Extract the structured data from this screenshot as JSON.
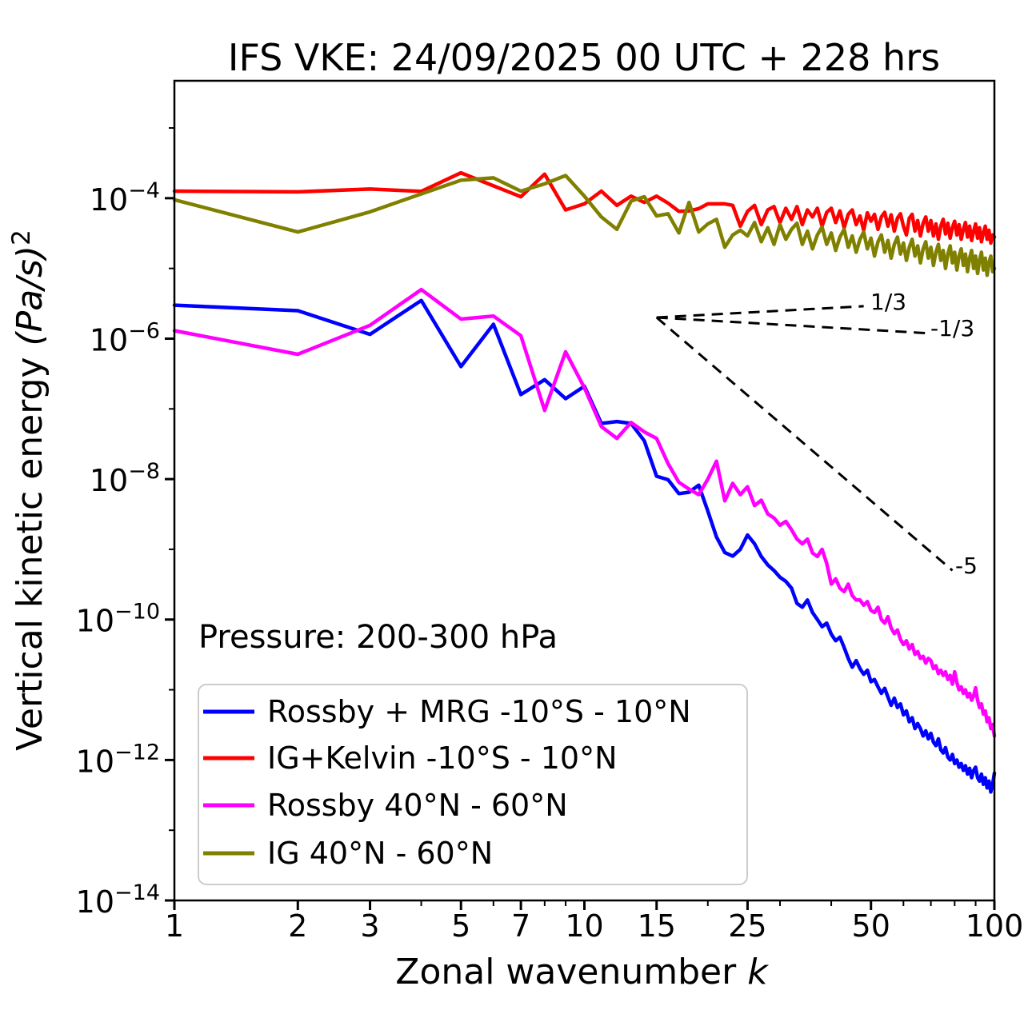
{
  "title": "IFS VKE: 24/09/2025 00 UTC + 228 hrs",
  "annotation": "Pressure: 200-300 hPa",
  "axes": {
    "xlabel_prefix": "Zonal wavenumber ",
    "xlabel_var": "k",
    "ylabel_prefix": "Vertical kinetic energy ",
    "ylabel_unit": "(Pa/s)",
    "ylabel_exp": "2",
    "xlim": [
      1,
      100
    ],
    "ylim": [
      1e-14,
      0.0047
    ],
    "xticks_major": [
      1,
      2,
      3,
      5,
      7,
      10,
      15,
      25,
      50,
      100
    ],
    "xticks_minor": [
      4,
      6,
      8,
      9,
      20,
      30,
      40,
      60,
      70,
      80,
      90
    ],
    "yticks_major_exp": [
      -4,
      -6,
      -8,
      -10,
      -12,
      -14
    ],
    "yticks_minor_exp": [
      -3,
      -5,
      -7,
      -9,
      -11,
      -13
    ]
  },
  "chart_data": {
    "type": "line",
    "title": "IFS VKE: 24/09/2025 00 UTC + 228 hrs",
    "xlabel": "Zonal wavenumber k",
    "ylabel": "Vertical kinetic energy (Pa/s)^2",
    "xscale": "log",
    "yscale": "log",
    "xlim": [
      1,
      100
    ],
    "ylim": [
      1e-14,
      0.0047
    ],
    "grid": false,
    "legend_position": "lower left",
    "x": [
      1,
      2,
      3,
      4,
      5,
      6,
      7,
      8,
      9,
      10,
      11,
      12,
      13,
      14,
      15,
      16,
      17,
      18,
      19,
      20,
      21,
      22,
      23,
      24,
      25,
      26,
      27,
      28,
      29,
      30,
      31,
      32,
      33,
      34,
      35,
      36,
      37,
      38,
      39,
      40,
      41,
      42,
      43,
      44,
      45,
      46,
      47,
      48,
      49,
      50,
      51,
      52,
      53,
      54,
      55,
      56,
      57,
      58,
      59,
      60,
      61,
      62,
      63,
      64,
      65,
      66,
      67,
      68,
      69,
      70,
      71,
      72,
      73,
      74,
      75,
      76,
      77,
      78,
      79,
      80,
      81,
      82,
      83,
      84,
      85,
      86,
      87,
      88,
      89,
      90,
      91,
      92,
      93,
      94,
      95,
      96,
      97,
      98,
      99,
      100
    ],
    "series": [
      {
        "name": "Rossby + MRG -10°S - 10°N",
        "color": "#0000ff",
        "values": [
          3e-06,
          2.5e-06,
          1.15e-06,
          3.5e-06,
          4e-07,
          1.6e-06,
          1.6e-07,
          2.6e-07,
          1.4e-07,
          2.1e-07,
          6.2e-08,
          6.6e-08,
          6.2e-08,
          3.5e-08,
          1.1e-08,
          9.8e-09,
          6.2e-09,
          6.5e-09,
          8.2e-09,
          3.5e-09,
          1.5e-09,
          9e-10,
          8e-10,
          1e-09,
          1.6e-09,
          1.2e-09,
          7.9e-10,
          6e-10,
          5e-10,
          4e-10,
          3.5e-10,
          2.8e-10,
          1.7e-10,
          1.5e-10,
          1.9e-10,
          1.26e-10,
          1e-10,
          7.9e-11,
          8.9e-11,
          6.2e-11,
          5e-11,
          5.6e-11,
          4e-11,
          2.8e-11,
          2.1e-11,
          2.6e-11,
          2e-11,
          1.66e-11,
          1.9e-11,
          1.3e-11,
          1.4e-11,
          1.1e-11,
          8.9e-12,
          1.05e-11,
          7.9e-12,
          6e-12,
          7.6e-12,
          5.6e-12,
          6.3e-12,
          4.4e-12,
          5e-12,
          3.5e-12,
          4e-12,
          2.8e-12,
          3.3e-12,
          2.8e-12,
          2.2e-12,
          2.6e-12,
          2e-12,
          2.4e-12,
          1.8e-12,
          1.6e-12,
          2e-12,
          1.4e-12,
          1.26e-12,
          1.5e-12,
          1.1e-12,
          1e-12,
          1.2e-12,
          8.9e-13,
          1e-12,
          7.9e-13,
          8.9e-13,
          7.1e-13,
          8.3e-13,
          6.3e-13,
          7.6e-13,
          5.6e-13,
          7.1e-13,
          7.9e-13,
          5.6e-13,
          5e-13,
          6.3e-13,
          4.5e-13,
          5.6e-13,
          4e-13,
          5e-13,
          3.5e-13,
          4.5e-13,
          6.5e-13
        ]
      },
      {
        "name": "IG+Kelvin -10°S - 10°N",
        "color": "#ff0000",
        "values": [
          0.000126,
          0.000123,
          0.000135,
          0.000125,
          0.00023,
          0.00015,
          0.000105,
          0.00022,
          6.8e-05,
          8.3e-05,
          0.000126,
          7.9e-05,
          0.000107,
          8.7e-05,
          0.000107,
          8.5e-05,
          6.5e-05,
          6.6e-05,
          7.1e-05,
          8.3e-05,
          8.3e-05,
          8.3e-05,
          7.9e-05,
          4e-05,
          6.5e-05,
          7.9e-05,
          4.2e-05,
          6.8e-05,
          7.6e-05,
          4.5e-05,
          7.2e-05,
          5e-05,
          7.6e-05,
          4.2e-05,
          6.8e-05,
          5.4e-05,
          7.2e-05,
          4e-05,
          6.3e-05,
          7.2e-05,
          4.5e-05,
          6.6e-05,
          3.8e-05,
          5.9e-05,
          6.8e-05,
          4.2e-05,
          5.6e-05,
          3.5e-05,
          6.2e-05,
          4.7e-05,
          5.9e-05,
          3.6e-05,
          5.4e-05,
          6.3e-05,
          4e-05,
          5.8e-05,
          3.4e-05,
          5.2e-05,
          6e-05,
          4e-05,
          3e-05,
          5.2e-05,
          5.9e-05,
          3.4e-05,
          4.8e-05,
          2.9e-05,
          4.4e-05,
          5.4e-05,
          3.4e-05,
          4.8e-05,
          2.9e-05,
          4.3e-05,
          2.6e-05,
          4e-05,
          5e-05,
          3.1e-05,
          4.4e-05,
          2.7e-05,
          3.8e-05,
          4.7e-05,
          3e-05,
          4.2e-05,
          2.6e-05,
          3.6e-05,
          4.5e-05,
          2.8e-05,
          4e-05,
          2.5e-05,
          3.4e-05,
          4.3e-05,
          2.7e-05,
          3.8e-05,
          2.4e-05,
          3.2e-05,
          4e-05,
          2.6e-05,
          3.5e-05,
          2.3e-05,
          3e-05,
          2.8e-05
        ]
      },
      {
        "name": "Rossby 40°N - 60°N",
        "color": "#ff00ff",
        "values": [
          1.3e-06,
          6e-07,
          1.55e-06,
          5e-06,
          1.9e-06,
          2.1e-06,
          1.1e-06,
          9.5e-08,
          6.5e-07,
          2e-07,
          5.6e-08,
          3.8e-08,
          6.4e-08,
          4.7e-08,
          3.8e-08,
          1.66e-08,
          9e-09,
          7.2e-09,
          6e-09,
          1e-08,
          1.8e-08,
          4.9e-09,
          8.7e-09,
          6e-09,
          7.8e-09,
          4.2e-09,
          5e-09,
          3.2e-09,
          2.8e-09,
          2.2e-09,
          2.5e-09,
          1.9e-09,
          1.4e-09,
          1.2e-09,
          1.4e-09,
          8.9e-10,
          7.9e-10,
          1e-09,
          6.3e-10,
          3.2e-10,
          3.8e-10,
          2.8e-10,
          2.5e-10,
          3.2e-10,
          2.2e-10,
          1.9e-10,
          1.9e-10,
          1.6e-10,
          1.8e-10,
          1.35e-10,
          1.26e-10,
          1.5e-10,
          1e-10,
          8.9e-11,
          1.1e-10,
          7.6e-11,
          6.3e-11,
          7.1e-11,
          5.2e-11,
          4.4e-11,
          5e-11,
          3.8e-11,
          4.4e-11,
          3.2e-11,
          3.5e-11,
          2.8e-11,
          3e-11,
          2.4e-11,
          2.8e-11,
          2.6e-11,
          2e-11,
          2.2e-11,
          1.7e-11,
          1.9e-11,
          1.6e-11,
          1.8e-11,
          1.4e-11,
          1.6e-11,
          1.2e-11,
          1.8e-11,
          1.26e-11,
          1e-11,
          1.1e-11,
          8.9e-12,
          1e-11,
          7.9e-12,
          8.9e-12,
          7.1e-12,
          8.3e-12,
          1.07e-11,
          7.1e-12,
          5.6e-12,
          6.3e-12,
          4.5e-12,
          5e-12,
          3.5e-12,
          4e-12,
          2.8e-12,
          3.2e-12,
          2.2e-12
        ]
      },
      {
        "name": "IG 40°N - 60°N",
        "color": "#808000",
        "values": [
          9.5e-05,
          3.3e-05,
          6.4e-05,
          0.000115,
          0.00018,
          0.000195,
          0.000126,
          0.00016,
          0.00021,
          0.000107,
          5.4e-05,
          3.6e-05,
          9.1e-05,
          0.000105,
          5.6e-05,
          6e-05,
          3.2e-05,
          8.7e-05,
          3.3e-05,
          4.3e-05,
          5e-05,
          2e-05,
          3e-05,
          3.5e-05,
          2.9e-05,
          4.5e-05,
          2.4e-05,
          3.8e-05,
          2.2e-05,
          4.2e-05,
          2.6e-05,
          3.6e-05,
          4.4e-05,
          2.2e-05,
          3.4e-05,
          1.9e-05,
          3e-05,
          3.9e-05,
          2.2e-05,
          3.2e-05,
          1.8e-05,
          2.8e-05,
          3.6e-05,
          2e-05,
          2.9e-05,
          1.7e-05,
          2.6e-05,
          3.3e-05,
          1.9e-05,
          2.7e-05,
          1.5e-05,
          2.4e-05,
          3e-05,
          1.7e-05,
          2.5e-05,
          1.4e-05,
          2.2e-05,
          2.8e-05,
          1.6e-05,
          2.3e-05,
          1.3e-05,
          2e-05,
          2.6e-05,
          1.5e-05,
          2.1e-05,
          1.2e-05,
          1.9e-05,
          2.4e-05,
          1.4e-05,
          2e-05,
          1.1e-05,
          1.7e-05,
          2.2e-05,
          1.3e-05,
          1.8e-05,
          1e-05,
          1.6e-05,
          2.1e-05,
          1.2e-05,
          1.7e-05,
          9.5e-06,
          1.5e-05,
          1.9e-05,
          1.1e-05,
          1.6e-05,
          9e-06,
          1.4e-05,
          1.8e-05,
          1e-05,
          1.5e-05,
          8.5e-06,
          1.3e-05,
          1.7e-05,
          9.5e-06,
          1.4e-05,
          8e-06,
          1.2e-05,
          1.5e-05,
          9e-06,
          1e-05
        ]
      }
    ],
    "reference_lines": [
      {
        "label": "1/3",
        "slope": 0.333,
        "x": [
          15,
          48
        ],
        "values": [
          2e-06,
          2.9e-06
        ]
      },
      {
        "label": "-1/3",
        "slope": -0.333,
        "x": [
          15,
          68
        ],
        "values": [
          2e-06,
          1.2e-06
        ]
      },
      {
        "label": "-5",
        "slope": -5,
        "x": [
          15,
          79
        ],
        "values": [
          2e-06,
          5e-10
        ]
      }
    ]
  },
  "legend": {
    "items": [
      "Rossby + MRG -10°S - 10°N",
      "IG+Kelvin -10°S - 10°N",
      "Rossby 40°N - 60°N",
      "IG 40°N - 60°N"
    ]
  }
}
